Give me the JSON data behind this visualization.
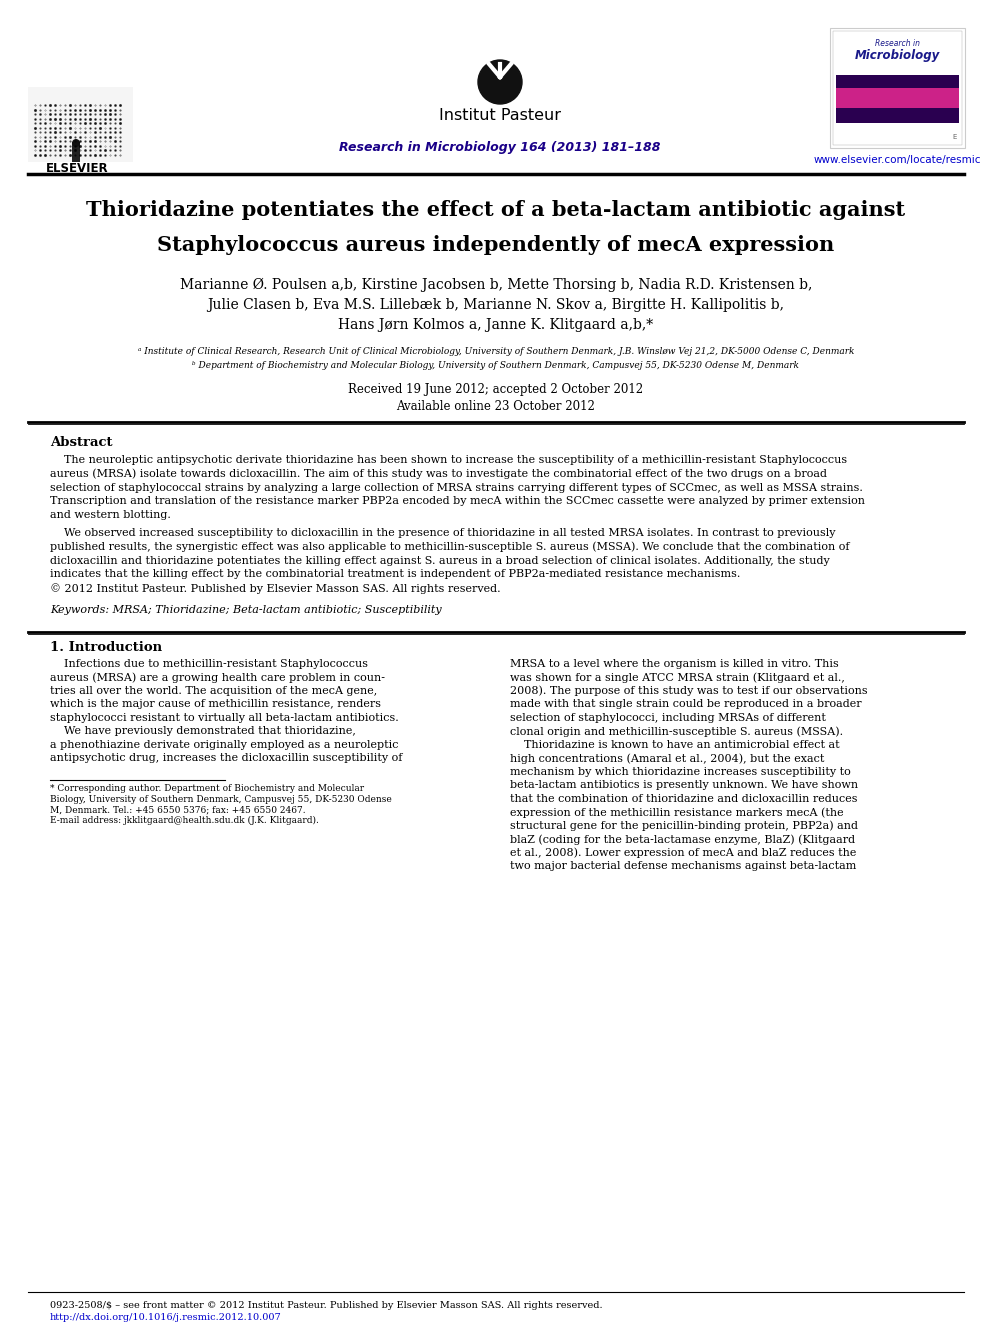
{
  "bg_color": "#ffffff",
  "title_line1": "Thioridazine potentiates the effect of a beta-lactam antibiotic against",
  "title_line2": "Staphylococcus aureus independently of mecA expression",
  "elsevier_text": "ELSEVIER",
  "institut_pasteur_text": "Institut Pasteur",
  "journal_text": "Research in Microbiology 164 (2013) 181–188",
  "website_text": "www.elsevier.com/locate/resmic",
  "author_line1": "Marianne Ø. Poulsen a,b, Kirstine Jacobsen b, Mette Thorsing b, Nadia R.D. Kristensen b,",
  "author_line2": "Julie Clasen b, Eva M.S. Lillebæk b, Marianne N. Skov a, Birgitte H. Kallipolitis b,",
  "author_line3": "Hans Jørn Kolmos a, Janne K. Klitgaard a,b,*",
  "affil_a": "ᵃ Institute of Clinical Research, Research Unit of Clinical Microbiology, University of Southern Denmark, J.B. Winsløw Vej 21,2, DK-5000 Odense C, Denmark",
  "affil_b": "ᵇ Department of Biochemistry and Molecular Biology, University of Southern Denmark, Campusvej 55, DK-5230 Odense M, Denmark",
  "received_text": "Received 19 June 2012; accepted 2 October 2012",
  "available_text": "Available online 23 October 2012",
  "abstract_heading": "Abstract",
  "abstract_p1_lines": [
    "    The neuroleptic antipsychotic derivate thioridazine has been shown to increase the susceptibility of a methicillin-resistant Staphylococcus",
    "aureus (MRSA) isolate towards dicloxacillin. The aim of this study was to investigate the combinatorial effect of the two drugs on a broad",
    "selection of staphylococcal strains by analyzing a large collection of MRSA strains carrying different types of SCCmec, as well as MSSA strains.",
    "Transcription and translation of the resistance marker PBP2a encoded by mecA within the SCCmec cassette were analyzed by primer extension",
    "and western blotting."
  ],
  "abstract_p2_lines": [
    "    We observed increased susceptibility to dicloxacillin in the presence of thioridazine in all tested MRSA isolates. In contrast to previously",
    "published results, the synergistic effect was also applicable to methicillin-susceptible S. aureus (MSSA). We conclude that the combination of",
    "dicloxacillin and thioridazine potentiates the killing effect against S. aureus in a broad selection of clinical isolates. Additionally, the study",
    "indicates that the killing effect by the combinatorial treatment is independent of PBP2a-mediated resistance mechanisms.",
    "© 2012 Institut Pasteur. Published by Elsevier Masson SAS. All rights reserved."
  ],
  "keywords_text": "Keywords: MRSA; Thioridazine; Beta-lactam antibiotic; Susceptibility",
  "intro_heading": "1. Introduction",
  "intro_left_lines": [
    "    Infections due to methicillin-resistant Staphylococcus",
    "aureus (MRSA) are a growing health care problem in coun-",
    "tries all over the world. The acquisition of the mecA gene,",
    "which is the major cause of methicillin resistance, renders",
    "staphylococci resistant to virtually all beta-lactam antibiotics.",
    "    We have previously demonstrated that thioridazine,",
    "a phenothiazine derivate originally employed as a neuroleptic",
    "antipsychotic drug, increases the dicloxacillin susceptibility of"
  ],
  "intro_right_lines": [
    "MRSA to a level where the organism is killed in vitro. This",
    "was shown for a single ATCC MRSA strain (Klitgaard et al.,",
    "2008). The purpose of this study was to test if our observations",
    "made with that single strain could be reproduced in a broader",
    "selection of staphylococci, including MRSAs of different",
    "clonal origin and methicillin-susceptible S. aureus (MSSA).",
    "    Thioridazine is known to have an antimicrobial effect at",
    "high concentrations (Amaral et al., 2004), but the exact",
    "mechanism by which thioridazine increases susceptibility to",
    "beta-lactam antibiotics is presently unknown. We have shown",
    "that the combination of thioridazine and dicloxacillin reduces",
    "expression of the methicillin resistance markers mecA (the",
    "structural gene for the penicillin-binding protein, PBP2a) and",
    "blaZ (coding for the beta-lactamase enzyme, BlaZ) (Klitgaard",
    "et al., 2008). Lower expression of mecA and blaZ reduces the",
    "two major bacterial defense mechanisms against beta-lactam"
  ],
  "footnote_lines": [
    "* Corresponding author. Department of Biochemistry and Molecular",
    "Biology, University of Southern Denmark, Campusvej 55, DK-5230 Odense",
    "M, Denmark. Tel.: +45 6550 5376; fax: +45 6550 2467.",
    "E-mail address: jkklitgaard@health.sdu.dk (J.K. Klitgaard)."
  ],
  "footer_issn": "0923-2508/$ – see front matter © 2012 Institut Pasteur. Published by Elsevier Masson SAS. All rights reserved.",
  "footer_doi": "http://dx.doi.org/10.1016/j.resmic.2012.10.007",
  "link_color": "#1a0088",
  "blue_link": "#0000cc",
  "text_color": "#000000"
}
